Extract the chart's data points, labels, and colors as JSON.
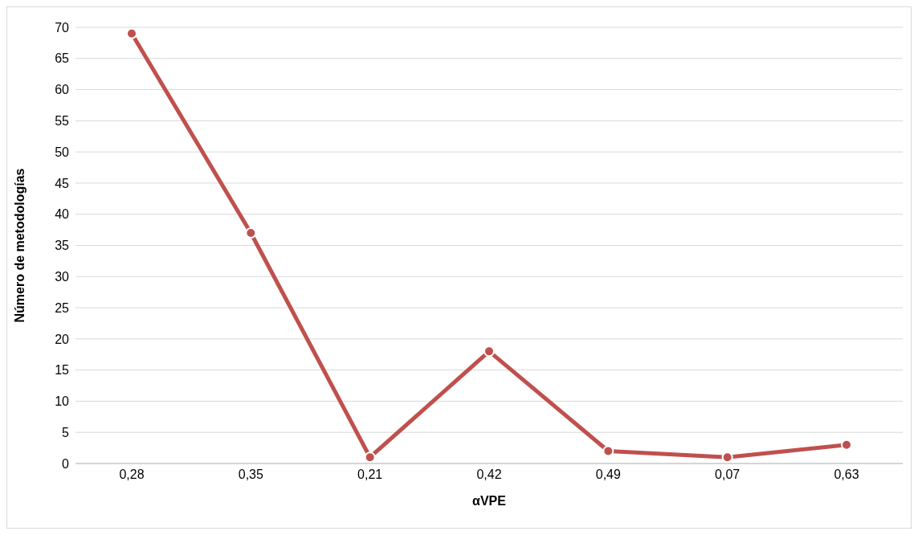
{
  "chart_data": {
    "type": "line",
    "xlabel": "αVPE",
    "ylabel": "Número de metodologías",
    "categories": [
      "0,28",
      "0,35",
      "0,21",
      "0,42",
      "0,49",
      "0,07",
      "0,63"
    ],
    "series": [
      {
        "color": "#c0504d",
        "values": [
          69,
          37,
          1,
          18,
          2,
          1,
          3
        ]
      }
    ],
    "ylim": [
      0,
      70
    ],
    "yticks": [
      0,
      5,
      10,
      15,
      20,
      25,
      30,
      35,
      40,
      45,
      50,
      55,
      60,
      65,
      70
    ],
    "grid": "y",
    "legend": false,
    "marker": "circle",
    "line_style": "solid"
  }
}
